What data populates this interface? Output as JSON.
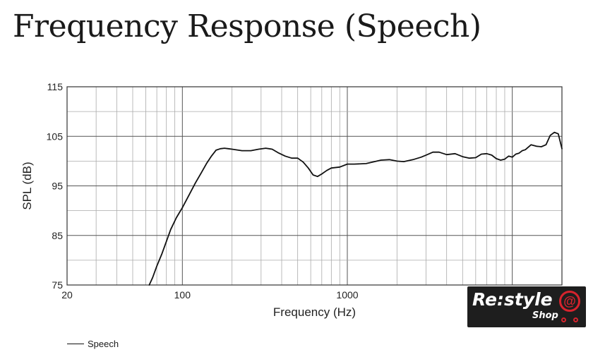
{
  "chart_data": {
    "type": "line",
    "title": "Frequency Response (Speech)",
    "xlabel": "Frequency (Hz)",
    "ylabel": "SPL (dB)",
    "x_scale": "log",
    "xlim": [
      20,
      20000
    ],
    "ylim": [
      75,
      115
    ],
    "x_ticks": [
      {
        "value": 20,
        "label": "20"
      },
      {
        "value": 100,
        "label": "100"
      },
      {
        "value": 1000,
        "label": "1000"
      }
    ],
    "y_ticks": [
      {
        "value": 75,
        "label": "75"
      },
      {
        "value": 85,
        "label": "85"
      },
      {
        "value": 95,
        "label": "95"
      },
      {
        "value": 105,
        "label": "105"
      },
      {
        "value": 115,
        "label": "115"
      }
    ],
    "grid": true,
    "legend_position": "bottom-left",
    "series": [
      {
        "name": "Speech",
        "color": "#111111",
        "x": [
          63,
          66,
          70,
          75,
          80,
          85,
          92,
          100,
          110,
          120,
          130,
          140,
          150,
          160,
          170,
          180,
          190,
          200,
          230,
          260,
          290,
          320,
          350,
          380,
          420,
          460,
          500,
          540,
          580,
          620,
          660,
          700,
          750,
          800,
          900,
          1000,
          1100,
          1300,
          1600,
          1800,
          2000,
          2200,
          2500,
          2800,
          3000,
          3300,
          3600,
          4000,
          4500,
          5000,
          5500,
          6000,
          6500,
          7000,
          7500,
          8000,
          8500,
          9000,
          9500,
          10000,
          10500,
          11000,
          11500,
          12000,
          13000,
          14000,
          15000,
          16000,
          17000,
          18000,
          19000,
          20000
        ],
        "y": [
          75,
          76.5,
          78.8,
          81.2,
          83.8,
          86.2,
          88.6,
          90.6,
          93.2,
          95.6,
          97.6,
          99.5,
          101,
          102.2,
          102.5,
          102.6,
          102.5,
          102.4,
          102.1,
          102.1,
          102.4,
          102.6,
          102.4,
          101.7,
          101,
          100.6,
          100.6,
          99.8,
          98.6,
          97.2,
          96.9,
          97.4,
          98.1,
          98.6,
          98.8,
          99.4,
          99.4,
          99.5,
          100.2,
          100.3,
          100,
          99.9,
          100.3,
          100.8,
          101.2,
          101.8,
          101.8,
          101.3,
          101.5,
          100.9,
          100.6,
          100.7,
          101.4,
          101.5,
          101.2,
          100.5,
          100.2,
          100.4,
          101,
          100.8,
          101.4,
          101.6,
          102.1,
          102.3,
          103.3,
          103.0,
          102.9,
          103.3,
          105.2,
          105.8,
          105.5,
          102.5
        ]
      }
    ]
  },
  "legend": {
    "label": "Speech"
  },
  "logo": {
    "main": "Re:style",
    "sub": "Shop",
    "symbol": "@",
    "accent_color": "#d7232d"
  }
}
